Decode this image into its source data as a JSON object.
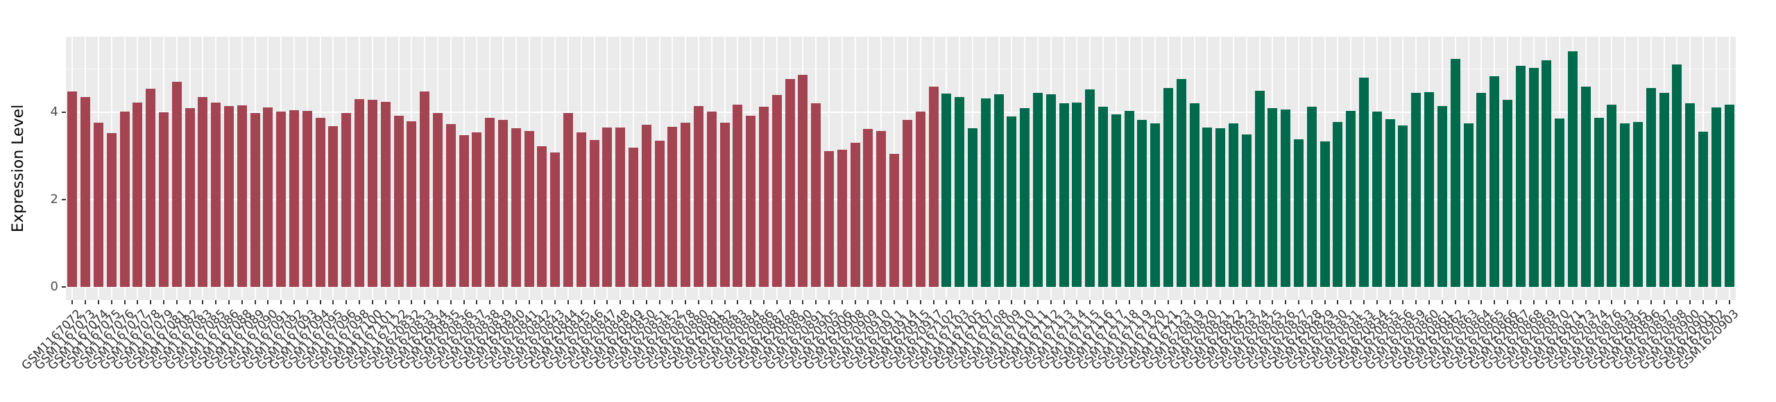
{
  "chart_data": {
    "type": "bar",
    "title": "",
    "xlabel": "",
    "ylabel": "Expression Level",
    "y_ticks": [
      0,
      2,
      4
    ],
    "ylim": [
      0,
      5.73
    ],
    "grid": true,
    "legend_position": "none",
    "panel_background": "#EBEBEB",
    "gridline_color": "#FFFFFF",
    "groups": [
      {
        "name": "group-1-red",
        "color": "#A44452",
        "categories": [
          "GSM1167072",
          "GSM1167073",
          "GSM1167074",
          "GSM1167075",
          "GSM1167076",
          "GSM1167077",
          "GSM1167078",
          "GSM1167079",
          "GSM1167081",
          "GSM1167082",
          "GSM1167083",
          "GSM1167085",
          "GSM1167086",
          "GSM1167088",
          "GSM1167089",
          "GSM1167090",
          "GSM1167091",
          "GSM1167092",
          "GSM1167093",
          "GSM1167094",
          "GSM1167095",
          "GSM1167096",
          "GSM1167098",
          "GSM1167100",
          "GSM1167101",
          "GSM1167122",
          "GSM1620832",
          "GSM1620833",
          "GSM1620834",
          "GSM1620835",
          "GSM1620836",
          "GSM1620837",
          "GSM1620838",
          "GSM1620839",
          "GSM1620840",
          "GSM1620841",
          "GSM1620842",
          "GSM1620843",
          "GSM1620844",
          "GSM1620845",
          "GSM1620846",
          "GSM1620847",
          "GSM1620848",
          "GSM1620849",
          "GSM1620850",
          "GSM1620851",
          "GSM1620852",
          "GSM1620878",
          "GSM1620880",
          "GSM1620881",
          "GSM1620882",
          "GSM1620883",
          "GSM1620884",
          "GSM1620886",
          "GSM1620887",
          "GSM1620888",
          "GSM1620890",
          "GSM1620891",
          "GSM1620905",
          "GSM1620906",
          "GSM1620908",
          "GSM1620909",
          "GSM1620910",
          "GSM1620911",
          "GSM1620914",
          "GSM1620915",
          "GSM1620917"
        ],
        "values": [
          4.48,
          4.35,
          3.76,
          3.53,
          4.01,
          4.23,
          4.54,
          4.0,
          4.7,
          4.1,
          4.35,
          4.23,
          4.14,
          4.16,
          3.98,
          4.11,
          4.02,
          4.05,
          4.03,
          3.87,
          3.69,
          3.99,
          4.3,
          4.28,
          4.24,
          3.92,
          3.79,
          4.47,
          3.99,
          3.73,
          3.47,
          3.54,
          3.88,
          3.82,
          3.64,
          3.57,
          3.22,
          3.08,
          3.98,
          3.54,
          3.37,
          3.65,
          3.65,
          3.19,
          3.71,
          3.35,
          3.66,
          3.76,
          4.15,
          4.02,
          3.76,
          4.18,
          3.92,
          4.12,
          4.4,
          4.76,
          4.85,
          4.21,
          3.11,
          3.15,
          3.3,
          3.62,
          3.57,
          3.04,
          3.82,
          4.02,
          4.58
        ]
      },
      {
        "name": "group-2-green",
        "color": "#006A4D",
        "categories": [
          "GSM1167102",
          "GSM1167103",
          "GSM1167105",
          "GSM1167107",
          "GSM1167108",
          "GSM1167109",
          "GSM1167110",
          "GSM1167111",
          "GSM1167112",
          "GSM1167113",
          "GSM1167114",
          "GSM1167115",
          "GSM1167116",
          "GSM1167117",
          "GSM1167118",
          "GSM1167119",
          "GSM1167120",
          "GSM1167121",
          "GSM1167123",
          "GSM1620819",
          "GSM1620820",
          "GSM1620821",
          "GSM1620822",
          "GSM1620823",
          "GSM1620824",
          "GSM1620825",
          "GSM1620826",
          "GSM1620827",
          "GSM1620828",
          "GSM1620829",
          "GSM1620830",
          "GSM1620831",
          "GSM1620853",
          "GSM1620854",
          "GSM1620855",
          "GSM1620856",
          "GSM1620859",
          "GSM1620860",
          "GSM1620861",
          "GSM1620862",
          "GSM1620863",
          "GSM1620864",
          "GSM1620865",
          "GSM1620866",
          "GSM1620867",
          "GSM1620868",
          "GSM1620869",
          "GSM1620870",
          "GSM1620871",
          "GSM1620873",
          "GSM1620874",
          "GSM1620876",
          "GSM1620893",
          "GSM1620895",
          "GSM1620896",
          "GSM1620897",
          "GSM1620898",
          "GSM1620900",
          "GSM1620901",
          "GSM1620902",
          "GSM1620903"
        ],
        "values": [
          4.43,
          4.35,
          3.64,
          4.31,
          4.42,
          3.9,
          4.09,
          4.45,
          4.41,
          4.21,
          4.23,
          4.52,
          4.13,
          3.95,
          4.03,
          3.83,
          3.74,
          4.55,
          4.76,
          4.2,
          3.65,
          3.63,
          3.75,
          3.5,
          4.49,
          4.1,
          4.06,
          3.38,
          4.12,
          3.33,
          3.78,
          4.03,
          4.79,
          4.02,
          3.84,
          3.7,
          4.44,
          4.46,
          4.15,
          5.23,
          3.74,
          4.44,
          4.82,
          4.28,
          5.06,
          5.02,
          5.19,
          3.86,
          5.39,
          4.59,
          3.87,
          4.17,
          3.74,
          3.78,
          4.55,
          4.44,
          5.09,
          4.2,
          3.55,
          4.11,
          4.17
        ]
      }
    ]
  },
  "layout_text": {
    "y_axis_title": "Expression Level"
  }
}
